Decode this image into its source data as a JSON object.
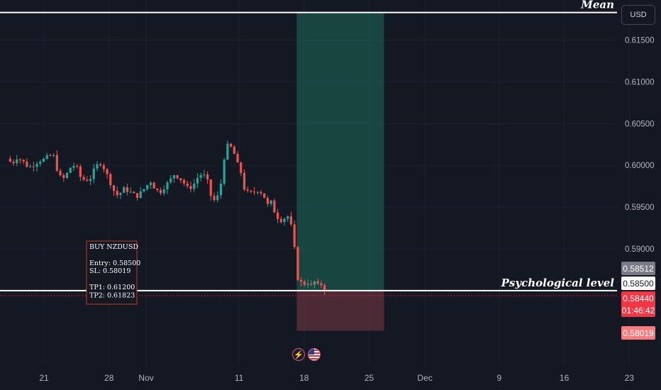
{
  "chart_data": {
    "type": "candlestick",
    "symbol": "NZDUSD",
    "currency": "USD",
    "y_axis": {
      "ylim": [
        0.5765,
        0.6198
      ],
      "ticks": [
        "0.61500",
        "0.61000",
        "0.60500",
        "0.60000",
        "0.59500",
        "0.59000"
      ],
      "position": "right"
    },
    "x_axis": {
      "ticks": [
        {
          "label": "21",
          "day": 0
        },
        {
          "label": "28",
          "day": 7
        },
        {
          "label": "Nov",
          "day": 11
        },
        {
          "label": "11",
          "day": 21
        },
        {
          "label": "18",
          "day": 28
        },
        {
          "label": "25",
          "day": 35
        },
        {
          "label": "Dec",
          "day": 41
        },
        {
          "label": "9",
          "day": 49
        },
        {
          "label": "16",
          "day": 56
        },
        {
          "label": "23",
          "day": 63
        }
      ]
    },
    "horizontal_lines": [
      {
        "name": "Mean",
        "price": 0.6183,
        "color": "#ffffff"
      },
      {
        "name": "Psychological level",
        "price": 0.585,
        "color": "#ffffff"
      }
    ],
    "current_price_line": {
      "price": 0.5844,
      "color": "#f23645"
    },
    "position_tool": {
      "direction": "long",
      "entry": 0.585,
      "stop": 0.58019,
      "target": 0.6183,
      "start_day": 27.2,
      "end_day": 36.6,
      "profit_color": "#1e6b5a",
      "loss_color": "#7a3a45"
    },
    "price_tags": [
      {
        "label": "0.58512",
        "price": 0.58512,
        "bg": "#787b86",
        "fg": "#ffffff"
      },
      {
        "label": "0.58500",
        "price": 0.585,
        "bg": "#ffffff",
        "fg": "#131722"
      },
      {
        "label": "0.58440",
        "price": 0.5844,
        "bg": "#f23645",
        "fg": "#ffffff",
        "sub": "01:46:42"
      },
      {
        "label": "0.58019",
        "price": 0.58019,
        "bg": "#f77c80",
        "fg": "#ffffff"
      }
    ],
    "annotations": {
      "mean_label": "Mean",
      "psych_label": "Psychological level"
    },
    "trade_box": {
      "lines": [
        "BUY NZDUSD",
        "",
        "Entry:  0.58500",
        "SL:   0.58019",
        "",
        "TP1: 0.61200",
        "TP2: 0.61823"
      ]
    },
    "path": [
      [
        -4.0,
        0.6008
      ],
      [
        -3.6,
        0.6004
      ],
      [
        -3.1,
        0.6004
      ],
      [
        -2.9,
        0.601
      ],
      [
        -2.4,
        0.6006
      ],
      [
        -1.9,
        0.6
      ],
      [
        -1.4,
        0.5998
      ],
      [
        -1.0,
        0.6002
      ],
      [
        -0.5,
        0.6006
      ],
      [
        0.0,
        0.6007
      ],
      [
        0.5,
        0.6011
      ],
      [
        1.0,
        0.6012
      ],
      [
        1.1,
        0.6009
      ],
      [
        1.6,
        0.5987
      ],
      [
        2.1,
        0.5984
      ],
      [
        2.6,
        0.5992
      ],
      [
        3.0,
        0.6001
      ],
      [
        3.5,
        0.5998
      ],
      [
        4.0,
        0.5984
      ],
      [
        4.5,
        0.5982
      ],
      [
        5.0,
        0.5985
      ],
      [
        5.5,
        0.5997
      ],
      [
        6.0,
        0.6004
      ],
      [
        6.5,
        0.5996
      ],
      [
        7.0,
        0.5983
      ],
      [
        7.5,
        0.597
      ],
      [
        8.0,
        0.5963
      ],
      [
        8.5,
        0.5972
      ],
      [
        9.0,
        0.597
      ],
      [
        9.5,
        0.5966
      ],
      [
        10.0,
        0.5963
      ],
      [
        10.5,
        0.5968
      ],
      [
        11.0,
        0.5975
      ],
      [
        11.5,
        0.5981
      ],
      [
        12.0,
        0.5971
      ],
      [
        12.5,
        0.5968
      ],
      [
        13.0,
        0.5975
      ],
      [
        13.5,
        0.5981
      ],
      [
        14.0,
        0.5989
      ],
      [
        14.5,
        0.5986
      ],
      [
        15.0,
        0.598
      ],
      [
        15.5,
        0.5972
      ],
      [
        16.0,
        0.5975
      ],
      [
        16.5,
        0.5985
      ],
      [
        17.0,
        0.599
      ],
      [
        17.5,
        0.5985
      ],
      [
        18.0,
        0.5962
      ],
      [
        18.5,
        0.5956
      ],
      [
        19.0,
        0.5975
      ],
      [
        19.5,
        0.6018
      ],
      [
        19.8,
        0.6024
      ],
      [
        20.3,
        0.602
      ],
      [
        20.8,
        0.6002
      ],
      [
        21.3,
        0.5989
      ],
      [
        21.6,
        0.597
      ],
      [
        22.1,
        0.5966
      ],
      [
        22.6,
        0.5968
      ],
      [
        23.1,
        0.5971
      ],
      [
        23.6,
        0.5965
      ],
      [
        24.1,
        0.5952
      ],
      [
        24.4,
        0.5957
      ],
      [
        24.9,
        0.5942
      ],
      [
        25.4,
        0.5934
      ],
      [
        25.9,
        0.5937
      ],
      [
        26.4,
        0.594
      ],
      [
        26.9,
        0.5908
      ],
      [
        27.2,
        0.5867
      ],
      [
        27.6,
        0.586
      ],
      [
        28.0,
        0.5858
      ],
      [
        28.4,
        0.586
      ],
      [
        28.8,
        0.5855
      ],
      [
        29.1,
        0.5861
      ],
      [
        29.5,
        0.5856
      ],
      [
        29.8,
        0.5858
      ],
      [
        30.2,
        0.5852
      ],
      [
        30.5,
        0.5844
      ]
    ]
  }
}
